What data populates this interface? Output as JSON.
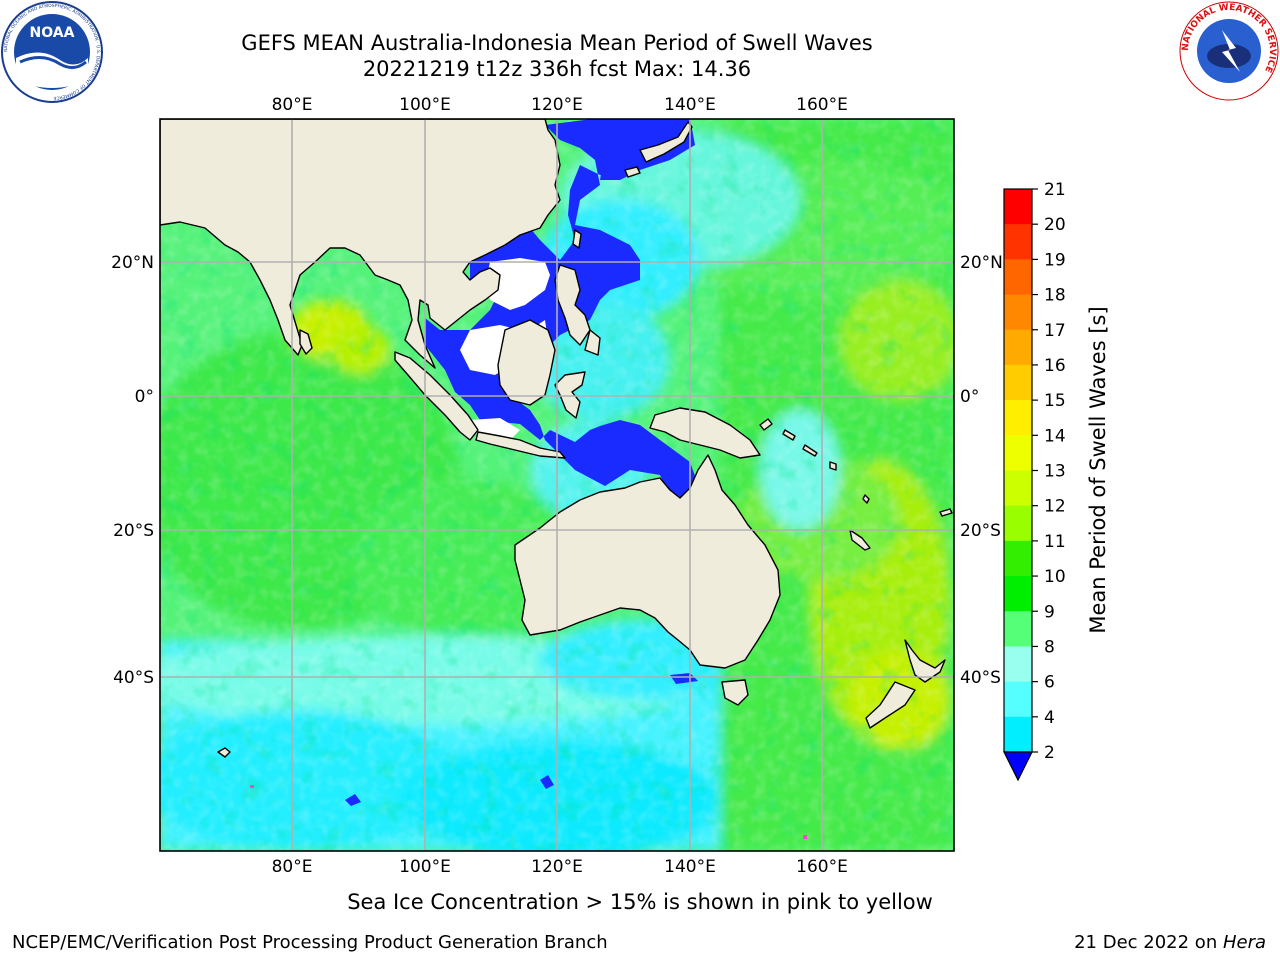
{
  "header": {
    "title_line1": "GEFS MEAN Australia-Indonesia Mean Period of Swell Waves",
    "title_line2": "20221219 t12z 336h fcst   Max: 14.36"
  },
  "logos": {
    "noaa": "NOAA",
    "noaa_ring": "NATIONAL OCEANIC AND ATMOSPHERIC ADMINISTRATION · U.S. DEPARTMENT OF COMMERCE",
    "nws_ring": "NATIONAL WEATHER SERVICE"
  },
  "map": {
    "lon_labels": [
      "80°E",
      "100°E",
      "120°E",
      "140°E",
      "160°E"
    ],
    "lat_labels": [
      "20°N",
      "0°",
      "20°S",
      "40°S"
    ],
    "colors": {
      "land": "#efecdc",
      "coast": "#000000",
      "grid": "#b0b0b0"
    }
  },
  "colorbar": {
    "label": "Mean Period of Swell Waves [s]",
    "ticks": [
      "21",
      "20",
      "19",
      "18",
      "17",
      "16",
      "15",
      "14",
      "13",
      "12",
      "11",
      "10",
      "9",
      "8",
      "6",
      "4",
      "2"
    ],
    "colors": [
      "#ff0000",
      "#ff3300",
      "#ff6600",
      "#ff8800",
      "#ffaa00",
      "#ffcc00",
      "#ffee00",
      "#eeff00",
      "#ccff00",
      "#99ff00",
      "#33ee00",
      "#00ee00",
      "#55ff77",
      "#99ffee",
      "#55ffff",
      "#00eeff",
      "#0077ff",
      "#0000ff"
    ]
  },
  "caption": "Sea Ice Concentration > 15% is shown in pink to yellow",
  "footer": {
    "left": "NCEP/EMC/Verification Post Processing Product Generation Branch",
    "date": "21 Dec 2022 on ",
    "host": "Hera"
  }
}
